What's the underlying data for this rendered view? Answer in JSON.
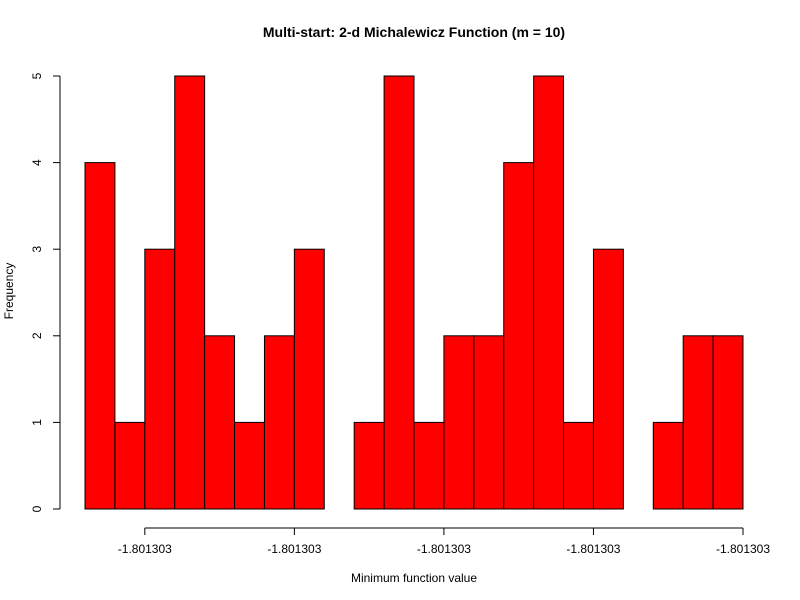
{
  "chart_data": {
    "type": "bar",
    "title": "Multi-start: 2-d Michalewicz Function (m = 10)",
    "xlabel": "Minimum function value",
    "ylabel": "Frequency",
    "bar_color": "#ff0000",
    "values": [
      4,
      1,
      3,
      5,
      2,
      1,
      2,
      3,
      0,
      1,
      5,
      1,
      2,
      2,
      4,
      5,
      1,
      3,
      0,
      1,
      2,
      2
    ],
    "ylim": [
      0,
      5
    ],
    "y_ticks": [
      "0",
      "1",
      "2",
      "3",
      "4",
      "5"
    ],
    "x_tick_labels": [
      "-1.801303",
      "-1.801303",
      "-1.801303",
      "-1.801303",
      "-1.801303"
    ],
    "x_tick_bin_index": [
      2,
      7,
      12,
      17,
      22
    ],
    "grid": false
  }
}
